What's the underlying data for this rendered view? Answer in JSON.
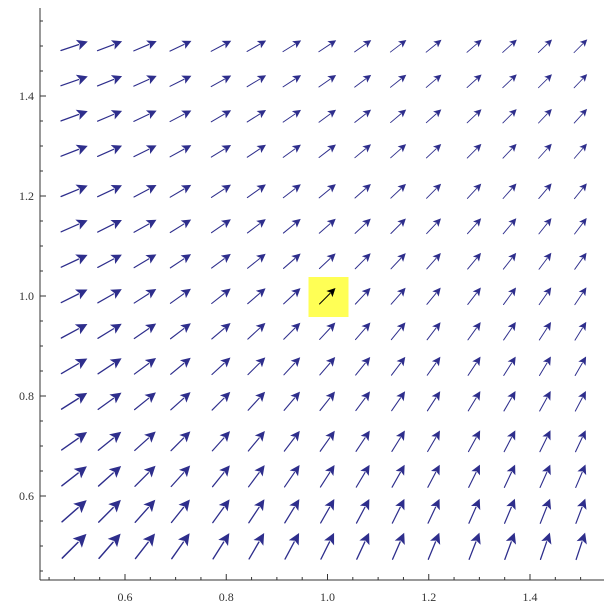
{
  "chart_data": {
    "type": "vector_field",
    "title": "",
    "xlabel": "",
    "ylabel": "",
    "xlim": [
      0.45,
      1.55
    ],
    "ylim": [
      0.45,
      1.55
    ],
    "x_ticks": [
      0.6,
      0.8,
      1.0,
      1.2,
      1.4
    ],
    "x_tick_labels": [
      "0.6",
      "0.8",
      "1.0",
      "1.2",
      "1.4"
    ],
    "y_ticks": [
      0.6,
      0.8,
      1.0,
      1.2,
      1.4
    ],
    "y_tick_labels": [
      "0.6",
      "0.8",
      "1.0",
      "1.2",
      "1.4"
    ],
    "grid": false,
    "frame": "left-bottom",
    "field": {
      "description_in_data_units": "arrows on a 15 x 15 grid; direction roughly along (1/x, 1/y)",
      "x_points": [
        0.5,
        0.57,
        0.64,
        0.71,
        0.79,
        0.86,
        0.93,
        1.0,
        1.07,
        1.14,
        1.21,
        1.29,
        1.36,
        1.43,
        1.5
      ],
      "y_points": [
        0.5,
        0.57,
        0.64,
        0.71,
        0.79,
        0.86,
        0.93,
        1.0,
        1.07,
        1.14,
        1.21,
        1.29,
        1.36,
        1.43,
        1.5
      ],
      "vector_rule": "u = 1/x, v = 1/y"
    },
    "highlight": {
      "x": 1.0,
      "y": 1.0,
      "color": "#ffff55"
    },
    "colors": {
      "arrow": "#2e2e8c",
      "highlight_arrow": "#000000",
      "axis": "#333333"
    }
  }
}
